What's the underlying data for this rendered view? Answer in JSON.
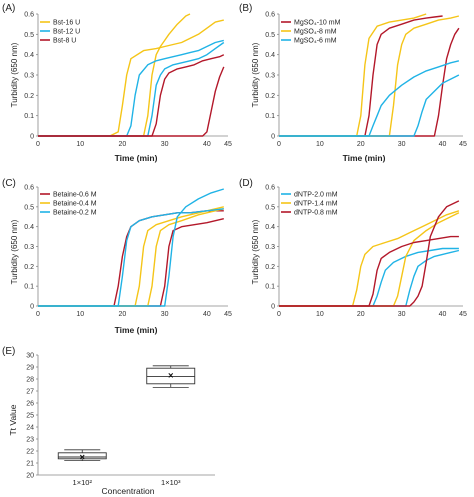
{
  "colors": {
    "gold": "#f5c518",
    "blue": "#20b3e6",
    "red": "#b3182a",
    "black": "#111111",
    "axis": "#888888"
  },
  "chart_data": [
    {
      "panel": "(A)",
      "type": "line",
      "xlabel": "Time (min)",
      "ylabel": "Turbidity (650 nm)",
      "xticks": [
        "0",
        "10",
        "20",
        "30",
        "40",
        "45"
      ],
      "yticks": [
        "0",
        "0.1",
        "0.2",
        "0.3",
        "0.4",
        "0.5",
        "0.6"
      ],
      "xlim": [
        0,
        45
      ],
      "ylim": [
        0,
        0.6
      ],
      "legend_position": "top-left",
      "series": [
        {
          "name": "Bst-16 U",
          "color": "gold",
          "x": [
            0,
            17,
            19,
            20,
            21,
            22,
            25,
            28,
            30,
            32,
            34,
            36,
            38,
            40,
            42,
            44
          ],
          "y": [
            0,
            0,
            0.02,
            0.15,
            0.3,
            0.38,
            0.42,
            0.43,
            0.44,
            0.45,
            0.46,
            0.48,
            0.5,
            0.53,
            0.56,
            0.57
          ]
        },
        {
          "name": "Bst-16 U",
          "color": "gold",
          "x": [
            0,
            25,
            26,
            27,
            28,
            29,
            30,
            31,
            33,
            34,
            35,
            36
          ],
          "y": [
            0,
            0,
            0.1,
            0.3,
            0.4,
            0.44,
            0.47,
            0.5,
            0.55,
            0.57,
            0.59,
            0.6
          ]
        },
        {
          "name": "Bst-12 U",
          "color": "blue",
          "x": [
            0,
            21,
            22,
            23,
            24,
            26,
            28,
            30,
            32,
            34,
            36,
            38,
            40,
            42,
            44
          ],
          "y": [
            0,
            0,
            0.05,
            0.2,
            0.3,
            0.35,
            0.37,
            0.38,
            0.39,
            0.4,
            0.41,
            0.42,
            0.44,
            0.46,
            0.47
          ]
        },
        {
          "name": "Bst-12 U",
          "color": "blue",
          "x": [
            0,
            26,
            27,
            28,
            29,
            30,
            32,
            34,
            36,
            38,
            40,
            42,
            44
          ],
          "y": [
            0,
            0,
            0.1,
            0.25,
            0.3,
            0.33,
            0.35,
            0.36,
            0.37,
            0.38,
            0.4,
            0.43,
            0.46
          ]
        },
        {
          "name": "Bst-8 U",
          "color": "red",
          "x": [
            0,
            27,
            28,
            29,
            30,
            31,
            33,
            35,
            37,
            39,
            41,
            43,
            44
          ],
          "y": [
            0,
            0,
            0.06,
            0.2,
            0.28,
            0.31,
            0.33,
            0.34,
            0.35,
            0.37,
            0.38,
            0.39,
            0.4
          ]
        },
        {
          "name": "Bst-8 U",
          "color": "red",
          "x": [
            0,
            39,
            40,
            41,
            42,
            43,
            44
          ],
          "y": [
            0,
            0,
            0.02,
            0.12,
            0.22,
            0.29,
            0.34
          ]
        }
      ]
    },
    {
      "panel": "(B)",
      "type": "line",
      "xlabel": "Time (min)",
      "ylabel": "Turbidity (650 nm)",
      "xticks": [
        "0",
        "10",
        "20",
        "30",
        "40",
        "45"
      ],
      "yticks": [
        "0",
        "0.1",
        "0.2",
        "0.3",
        "0.4",
        "0.5",
        "0.6"
      ],
      "xlim": [
        0,
        45
      ],
      "ylim": [
        0,
        0.6
      ],
      "legend_position": "top-left",
      "series": [
        {
          "name": "MgSO₄-10 mM",
          "color": "red",
          "x": [
            0,
            21,
            22,
            23,
            24,
            25,
            27,
            30,
            33,
            36,
            38,
            40
          ],
          "y": [
            0,
            0,
            0.1,
            0.3,
            0.45,
            0.5,
            0.53,
            0.55,
            0.57,
            0.58,
            0.585,
            0.59
          ]
        },
        {
          "name": "MgSO₄-10 mM",
          "color": "red",
          "x": [
            0,
            38,
            39,
            40,
            41,
            42,
            43,
            44
          ],
          "y": [
            0,
            0,
            0.1,
            0.25,
            0.38,
            0.45,
            0.5,
            0.53
          ]
        },
        {
          "name": "MgSO₄-8 mM",
          "color": "gold",
          "x": [
            0,
            19,
            20,
            21,
            22,
            24,
            27,
            30,
            33,
            36
          ],
          "y": [
            0,
            0,
            0.1,
            0.35,
            0.48,
            0.54,
            0.56,
            0.57,
            0.58,
            0.6
          ]
        },
        {
          "name": "MgSO₄-8 mM",
          "color": "gold",
          "x": [
            0,
            27,
            28,
            29,
            30,
            31,
            33,
            36,
            39,
            42,
            44
          ],
          "y": [
            0,
            0,
            0.15,
            0.35,
            0.45,
            0.5,
            0.53,
            0.55,
            0.57,
            0.58,
            0.59
          ]
        },
        {
          "name": "MgSO₄-6 mM",
          "color": "blue",
          "x": [
            0,
            22,
            23,
            24,
            25,
            27,
            30,
            33,
            36,
            39,
            42,
            44
          ],
          "y": [
            0,
            0,
            0.05,
            0.1,
            0.15,
            0.2,
            0.25,
            0.29,
            0.32,
            0.34,
            0.36,
            0.37
          ]
        },
        {
          "name": "MgSO₄-6 mM",
          "color": "blue",
          "x": [
            0,
            33,
            34,
            35,
            36,
            38,
            40,
            42,
            44
          ],
          "y": [
            0,
            0,
            0.05,
            0.12,
            0.18,
            0.22,
            0.26,
            0.28,
            0.3
          ]
        }
      ]
    },
    {
      "panel": "(C)",
      "type": "line",
      "xlabel": "Time (min)",
      "ylabel": "Turbidity (650 nm)",
      "xticks": [
        "0",
        "10",
        "20",
        "30",
        "40",
        "45"
      ],
      "yticks": [
        "0",
        "0.1",
        "0.2",
        "0.3",
        "0.4",
        "0.5",
        "0.6"
      ],
      "xlim": [
        0,
        45
      ],
      "ylim": [
        0,
        0.6
      ],
      "legend_position": "top-left",
      "series": [
        {
          "name": "Betaine-0.6 M",
          "color": "red",
          "x": [
            0,
            18,
            19,
            20,
            21,
            22,
            24,
            27,
            30,
            33,
            36,
            40,
            44
          ],
          "y": [
            0,
            0,
            0.1,
            0.25,
            0.35,
            0.4,
            0.43,
            0.45,
            0.46,
            0.47,
            0.47,
            0.48,
            0.48
          ]
        },
        {
          "name": "Betaine-0.6 M",
          "color": "red",
          "x": [
            0,
            29,
            30,
            31,
            32,
            34,
            37,
            40,
            44
          ],
          "y": [
            0,
            0,
            0.1,
            0.3,
            0.38,
            0.4,
            0.41,
            0.42,
            0.44
          ]
        },
        {
          "name": "Betaine-0.4 M",
          "color": "gold",
          "x": [
            0,
            23,
            24,
            25,
            26,
            28,
            31,
            34,
            38,
            42,
            44
          ],
          "y": [
            0,
            0,
            0.1,
            0.3,
            0.38,
            0.41,
            0.43,
            0.45,
            0.47,
            0.49,
            0.5
          ]
        },
        {
          "name": "Betaine-0.4 M",
          "color": "gold",
          "x": [
            0,
            26,
            27,
            28,
            29,
            31,
            34,
            38,
            42,
            44
          ],
          "y": [
            0,
            0,
            0.1,
            0.3,
            0.38,
            0.41,
            0.43,
            0.46,
            0.48,
            0.49
          ]
        },
        {
          "name": "Betaine-0.2 M",
          "color": "blue",
          "x": [
            0,
            19,
            20,
            21,
            22,
            24,
            27,
            30,
            33,
            36,
            40,
            44
          ],
          "y": [
            0,
            0,
            0.15,
            0.33,
            0.4,
            0.43,
            0.45,
            0.46,
            0.47,
            0.47,
            0.48,
            0.49
          ]
        },
        {
          "name": "Betaine-0.2 M",
          "color": "blue",
          "x": [
            0,
            30,
            31,
            32,
            33,
            35,
            38,
            41,
            44
          ],
          "y": [
            0,
            0,
            0.15,
            0.35,
            0.45,
            0.5,
            0.54,
            0.57,
            0.59
          ]
        }
      ]
    },
    {
      "panel": "(D)",
      "type": "line",
      "xlabel": "Time (min)",
      "ylabel": "Turbidity (650 nm)",
      "xticks": [
        "0",
        "10",
        "20",
        "30",
        "40",
        "45"
      ],
      "yticks": [
        "0",
        "0.1",
        "0.2",
        "0.3",
        "0.4",
        "0.5",
        "0.6"
      ],
      "xlim": [
        0,
        45
      ],
      "ylim": [
        0,
        0.6
      ],
      "legend_position": "top-left",
      "series": [
        {
          "name": "dNTP-2.0 mM",
          "color": "blue",
          "x": [
            0,
            23,
            24,
            25,
            26,
            28,
            31,
            34,
            37,
            40,
            44
          ],
          "y": [
            0,
            0,
            0.05,
            0.12,
            0.18,
            0.22,
            0.25,
            0.27,
            0.28,
            0.29,
            0.29
          ]
        },
        {
          "name": "dNTP-2.0 mM",
          "color": "blue",
          "x": [
            0,
            31,
            32,
            33,
            34,
            36,
            38,
            40,
            42,
            44
          ],
          "y": [
            0,
            0,
            0.08,
            0.15,
            0.2,
            0.23,
            0.25,
            0.26,
            0.27,
            0.28
          ]
        },
        {
          "name": "dNTP-1.4 mM",
          "color": "gold",
          "x": [
            0,
            18,
            19,
            20,
            21,
            23,
            26,
            29,
            32,
            35,
            38,
            41,
            44
          ],
          "y": [
            0,
            0,
            0.08,
            0.2,
            0.26,
            0.3,
            0.32,
            0.34,
            0.37,
            0.4,
            0.43,
            0.46,
            0.48
          ]
        },
        {
          "name": "dNTP-1.4 mM",
          "color": "gold",
          "x": [
            0,
            28,
            29,
            30,
            31,
            33,
            36,
            39,
            42,
            44
          ],
          "y": [
            0,
            0,
            0.05,
            0.15,
            0.25,
            0.33,
            0.38,
            0.42,
            0.45,
            0.47
          ]
        },
        {
          "name": "dNTP-0.8 mM",
          "color": "red",
          "x": [
            0,
            22,
            23,
            24,
            25,
            27,
            30,
            33,
            36,
            39,
            42,
            44
          ],
          "y": [
            0,
            0,
            0.06,
            0.18,
            0.24,
            0.27,
            0.3,
            0.32,
            0.33,
            0.34,
            0.35,
            0.35
          ]
        },
        {
          "name": "dNTP-0.8 mM",
          "color": "red",
          "x": [
            0,
            32,
            33,
            34,
            35,
            36,
            37,
            39,
            41,
            44
          ],
          "y": [
            0,
            0,
            0.02,
            0.05,
            0.1,
            0.22,
            0.35,
            0.45,
            0.5,
            0.53
          ]
        }
      ]
    },
    {
      "panel": "(E)",
      "type": "box",
      "xlabel": "Concentration",
      "ylabel": "Tt Value",
      "yticks": [
        "20",
        "21",
        "22",
        "23",
        "24",
        "25",
        "26",
        "27",
        "28",
        "29",
        "30"
      ],
      "ylim": [
        20,
        30
      ],
      "categories": [
        "1×10²",
        "1×10³"
      ],
      "boxes": [
        {
          "min": 21.2,
          "q1": 21.35,
          "median": 21.5,
          "q3": 21.85,
          "max": 22.1,
          "mean": 21.5
        },
        {
          "min": 27.3,
          "q1": 27.6,
          "median": 28.2,
          "q3": 28.9,
          "max": 29.1,
          "mean": 28.3
        }
      ]
    }
  ]
}
